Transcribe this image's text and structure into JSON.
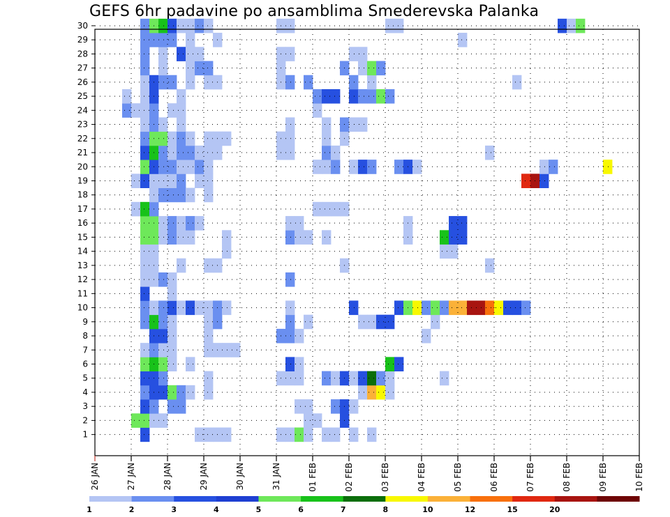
{
  "chart_data": {
    "type": "heatmap",
    "title": "GEFS 6hr padavine po ansamblima Smederevska Palanka",
    "x_tick_labels": [
      "26 JAN",
      "27 JAN",
      "28 JAN",
      "29 JAN",
      "30 JAN",
      "31 JAN",
      "01 FEB",
      "02 FEB",
      "03 FEB",
      "04 FEB",
      "05 FEB",
      "06 FEB",
      "07 FEB",
      "08 FEB",
      "09 FEB",
      "10 FEB"
    ],
    "y_tick_labels": [
      "1",
      "2",
      "3",
      "4",
      "5",
      "6",
      "7",
      "8",
      "9",
      "10",
      "11",
      "12",
      "13",
      "14",
      "15",
      "16",
      "17",
      "18",
      "19",
      "20",
      "21",
      "22",
      "23",
      "24",
      "25",
      "26",
      "27",
      "28",
      "29",
      "30"
    ],
    "y_range": [
      1,
      30
    ],
    "time_step_hours": 6,
    "grid": "dotted",
    "colorbar": {
      "labels": [
        "1",
        "2",
        "3",
        "4",
        "5",
        "6",
        "7",
        "8",
        "10",
        "12",
        "15",
        "20"
      ],
      "colors": [
        "#b4c5f4",
        "#6a8ff0",
        "#2650e0",
        "#1e3fd2",
        "#6ee85a",
        "#18c21a",
        "#0b6e0b",
        "#f8f800",
        "#fbb138",
        "#f8700c",
        "#e02810",
        "#a81410",
        "#6e0404"
      ]
    },
    "cells": [
      [
        1,
        5,
        3
      ],
      [
        1,
        11,
        1
      ],
      [
        1,
        12,
        1
      ],
      [
        1,
        13,
        1
      ],
      [
        1,
        14,
        1
      ],
      [
        1,
        20,
        1
      ],
      [
        1,
        21,
        1
      ],
      [
        1,
        22,
        5
      ],
      [
        1,
        23,
        1
      ],
      [
        1,
        25,
        1
      ],
      [
        1,
        26,
        1
      ],
      [
        1,
        28,
        1
      ],
      [
        1,
        30,
        1
      ],
      [
        2,
        4,
        5
      ],
      [
        2,
        5,
        5
      ],
      [
        2,
        6,
        1
      ],
      [
        2,
        7,
        1
      ],
      [
        2,
        23,
        1
      ],
      [
        2,
        24,
        1
      ],
      [
        2,
        27,
        3
      ],
      [
        3,
        5,
        3
      ],
      [
        3,
        6,
        2
      ],
      [
        3,
        8,
        2
      ],
      [
        3,
        9,
        2
      ],
      [
        3,
        22,
        1
      ],
      [
        3,
        23,
        1
      ],
      [
        3,
        26,
        2
      ],
      [
        3,
        27,
        3
      ],
      [
        3,
        28,
        1
      ],
      [
        4,
        5,
        2
      ],
      [
        4,
        6,
        3
      ],
      [
        4,
        7,
        3
      ],
      [
        4,
        8,
        5
      ],
      [
        4,
        9,
        2
      ],
      [
        4,
        10,
        1
      ],
      [
        4,
        12,
        1
      ],
      [
        4,
        29,
        1
      ],
      [
        4,
        30,
        9
      ],
      [
        4,
        31,
        8
      ],
      [
        4,
        32,
        1
      ],
      [
        5,
        5,
        3
      ],
      [
        5,
        6,
        3
      ],
      [
        5,
        7,
        2
      ],
      [
        5,
        12,
        1
      ],
      [
        5,
        20,
        1
      ],
      [
        5,
        21,
        1
      ],
      [
        5,
        22,
        1
      ],
      [
        5,
        25,
        2
      ],
      [
        5,
        26,
        1
      ],
      [
        5,
        27,
        3
      ],
      [
        5,
        28,
        1
      ],
      [
        5,
        29,
        3
      ],
      [
        5,
        30,
        7
      ],
      [
        5,
        31,
        2
      ],
      [
        5,
        32,
        1
      ],
      [
        5,
        38,
        1
      ],
      [
        6,
        5,
        5
      ],
      [
        6,
        6,
        6
      ],
      [
        6,
        7,
        5
      ],
      [
        6,
        8,
        1
      ],
      [
        6,
        10,
        1
      ],
      [
        6,
        21,
        3
      ],
      [
        6,
        22,
        1
      ],
      [
        6,
        32,
        6
      ],
      [
        6,
        33,
        3
      ],
      [
        7,
        5,
        1
      ],
      [
        7,
        6,
        2
      ],
      [
        7,
        7,
        1
      ],
      [
        7,
        8,
        1
      ],
      [
        7,
        12,
        1
      ],
      [
        7,
        13,
        1
      ],
      [
        7,
        14,
        1
      ],
      [
        7,
        15,
        1
      ],
      [
        8,
        6,
        3
      ],
      [
        8,
        7,
        3
      ],
      [
        8,
        8,
        1
      ],
      [
        8,
        12,
        1
      ],
      [
        8,
        20,
        2
      ],
      [
        8,
        21,
        2
      ],
      [
        8,
        22,
        1
      ],
      [
        8,
        36,
        1
      ],
      [
        9,
        5,
        2
      ],
      [
        9,
        6,
        6
      ],
      [
        9,
        7,
        2
      ],
      [
        9,
        8,
        1
      ],
      [
        9,
        12,
        1
      ],
      [
        9,
        13,
        2
      ],
      [
        9,
        21,
        2
      ],
      [
        9,
        23,
        1
      ],
      [
        9,
        29,
        1
      ],
      [
        9,
        30,
        1
      ],
      [
        9,
        31,
        3
      ],
      [
        9,
        32,
        3
      ],
      [
        9,
        37,
        1
      ],
      [
        10,
        5,
        2
      ],
      [
        10,
        6,
        1
      ],
      [
        10,
        7,
        2
      ],
      [
        10,
        8,
        3
      ],
      [
        10,
        9,
        1
      ],
      [
        10,
        10,
        3
      ],
      [
        10,
        11,
        1
      ],
      [
        10,
        12,
        1
      ],
      [
        10,
        13,
        2
      ],
      [
        10,
        14,
        1
      ],
      [
        10,
        21,
        1
      ],
      [
        10,
        28,
        3
      ],
      [
        10,
        33,
        3
      ],
      [
        10,
        34,
        5
      ],
      [
        10,
        35,
        8
      ],
      [
        10,
        36,
        2
      ],
      [
        10,
        37,
        5
      ],
      [
        10,
        38,
        2
      ],
      [
        10,
        39,
        9
      ],
      [
        10,
        40,
        9
      ],
      [
        10,
        41,
        12
      ],
      [
        10,
        42,
        12
      ],
      [
        10,
        43,
        10
      ],
      [
        10,
        44,
        8
      ],
      [
        10,
        45,
        3
      ],
      [
        10,
        46,
        3
      ],
      [
        10,
        47,
        2
      ],
      [
        11,
        5,
        3
      ],
      [
        11,
        8,
        1
      ],
      [
        12,
        5,
        1
      ],
      [
        12,
        6,
        1
      ],
      [
        12,
        7,
        2
      ],
      [
        12,
        8,
        1
      ],
      [
        12,
        21,
        2
      ],
      [
        13,
        5,
        1
      ],
      [
        13,
        6,
        1
      ],
      [
        13,
        9,
        1
      ],
      [
        13,
        12,
        1
      ],
      [
        13,
        13,
        1
      ],
      [
        13,
        27,
        1
      ],
      [
        13,
        43,
        1
      ],
      [
        14,
        5,
        1
      ],
      [
        14,
        6,
        1
      ],
      [
        14,
        14,
        1
      ],
      [
        14,
        38,
        1
      ],
      [
        14,
        39,
        1
      ],
      [
        15,
        5,
        5
      ],
      [
        15,
        6,
        5
      ],
      [
        15,
        7,
        1
      ],
      [
        15,
        8,
        2
      ],
      [
        15,
        9,
        1
      ],
      [
        15,
        10,
        1
      ],
      [
        15,
        14,
        1
      ],
      [
        15,
        21,
        2
      ],
      [
        15,
        22,
        1
      ],
      [
        15,
        23,
        1
      ],
      [
        15,
        25,
        1
      ],
      [
        15,
        34,
        1
      ],
      [
        15,
        38,
        6
      ],
      [
        15,
        39,
        3
      ],
      [
        15,
        40,
        3
      ],
      [
        16,
        5,
        5
      ],
      [
        16,
        6,
        5
      ],
      [
        16,
        7,
        1
      ],
      [
        16,
        8,
        2
      ],
      [
        16,
        9,
        1
      ],
      [
        16,
        10,
        2
      ],
      [
        16,
        11,
        1
      ],
      [
        16,
        21,
        1
      ],
      [
        16,
        22,
        1
      ],
      [
        16,
        34,
        1
      ],
      [
        16,
        39,
        3
      ],
      [
        16,
        40,
        3
      ],
      [
        17,
        4,
        1
      ],
      [
        17,
        5,
        6
      ],
      [
        17,
        6,
        2
      ],
      [
        17,
        24,
        1
      ],
      [
        17,
        25,
        1
      ],
      [
        17,
        26,
        1
      ],
      [
        17,
        27,
        1
      ],
      [
        18,
        6,
        1
      ],
      [
        18,
        7,
        2
      ],
      [
        18,
        8,
        2
      ],
      [
        18,
        9,
        2
      ],
      [
        18,
        10,
        1
      ],
      [
        18,
        12,
        1
      ],
      [
        19,
        4,
        1
      ],
      [
        19,
        5,
        3
      ],
      [
        19,
        6,
        1
      ],
      [
        19,
        7,
        1
      ],
      [
        19,
        8,
        1
      ],
      [
        19,
        9,
        2
      ],
      [
        19,
        11,
        1
      ],
      [
        19,
        12,
        1
      ],
      [
        19,
        47,
        11
      ],
      [
        19,
        48,
        12
      ],
      [
        19,
        49,
        3
      ],
      [
        20,
        5,
        5
      ],
      [
        20,
        6,
        3
      ],
      [
        20,
        7,
        2
      ],
      [
        20,
        8,
        2
      ],
      [
        20,
        9,
        1
      ],
      [
        20,
        10,
        1
      ],
      [
        20,
        11,
        2
      ],
      [
        20,
        12,
        1
      ],
      [
        20,
        24,
        1
      ],
      [
        20,
        25,
        1
      ],
      [
        20,
        26,
        2
      ],
      [
        20,
        28,
        1
      ],
      [
        20,
        29,
        3
      ],
      [
        20,
        30,
        2
      ],
      [
        20,
        33,
        2
      ],
      [
        20,
        34,
        3
      ],
      [
        20,
        35,
        1
      ],
      [
        20,
        49,
        1
      ],
      [
        20,
        50,
        2
      ],
      [
        20,
        56,
        8
      ],
      [
        21,
        5,
        3
      ],
      [
        21,
        6,
        6
      ],
      [
        21,
        7,
        2
      ],
      [
        21,
        8,
        1
      ],
      [
        21,
        9,
        2
      ],
      [
        21,
        10,
        2
      ],
      [
        21,
        11,
        1
      ],
      [
        21,
        12,
        1
      ],
      [
        21,
        13,
        1
      ],
      [
        21,
        20,
        1
      ],
      [
        21,
        21,
        1
      ],
      [
        21,
        25,
        2
      ],
      [
        21,
        26,
        1
      ],
      [
        21,
        43,
        1
      ],
      [
        22,
        5,
        2
      ],
      [
        22,
        6,
        5
      ],
      [
        22,
        7,
        5
      ],
      [
        22,
        8,
        1
      ],
      [
        22,
        9,
        2
      ],
      [
        22,
        10,
        1
      ],
      [
        22,
        12,
        1
      ],
      [
        22,
        13,
        1
      ],
      [
        22,
        14,
        1
      ],
      [
        22,
        20,
        1
      ],
      [
        22,
        21,
        1
      ],
      [
        22,
        25,
        1
      ],
      [
        22,
        27,
        1
      ],
      [
        23,
        5,
        1
      ],
      [
        23,
        6,
        2
      ],
      [
        23,
        7,
        1
      ],
      [
        23,
        9,
        1
      ],
      [
        23,
        21,
        1
      ],
      [
        23,
        25,
        1
      ],
      [
        23,
        27,
        2
      ],
      [
        23,
        28,
        1
      ],
      [
        23,
        29,
        1
      ],
      [
        24,
        3,
        2
      ],
      [
        24,
        4,
        1
      ],
      [
        24,
        5,
        1
      ],
      [
        24,
        6,
        2
      ],
      [
        24,
        8,
        1
      ],
      [
        24,
        9,
        1
      ],
      [
        24,
        24,
        1
      ],
      [
        25,
        3,
        1
      ],
      [
        25,
        5,
        1
      ],
      [
        25,
        6,
        3
      ],
      [
        25,
        9,
        1
      ],
      [
        25,
        24,
        2
      ],
      [
        25,
        25,
        3
      ],
      [
        25,
        26,
        3
      ],
      [
        25,
        28,
        3
      ],
      [
        25,
        29,
        2
      ],
      [
        25,
        30,
        2
      ],
      [
        25,
        31,
        5
      ],
      [
        25,
        32,
        2
      ],
      [
        26,
        5,
        1
      ],
      [
        26,
        6,
        3
      ],
      [
        26,
        7,
        2
      ],
      [
        26,
        8,
        2
      ],
      [
        26,
        10,
        1
      ],
      [
        26,
        12,
        1
      ],
      [
        26,
        13,
        1
      ],
      [
        26,
        20,
        1
      ],
      [
        26,
        21,
        2
      ],
      [
        26,
        23,
        2
      ],
      [
        26,
        28,
        2
      ],
      [
        26,
        30,
        1
      ],
      [
        26,
        46,
        1
      ],
      [
        27,
        5,
        2
      ],
      [
        27,
        7,
        1
      ],
      [
        27,
        10,
        1
      ],
      [
        27,
        11,
        2
      ],
      [
        27,
        12,
        2
      ],
      [
        27,
        20,
        1
      ],
      [
        27,
        27,
        2
      ],
      [
        27,
        29,
        1
      ],
      [
        27,
        30,
        5
      ],
      [
        27,
        31,
        2
      ],
      [
        28,
        5,
        2
      ],
      [
        28,
        7,
        1
      ],
      [
        28,
        9,
        3
      ],
      [
        28,
        10,
        1
      ],
      [
        28,
        11,
        1
      ],
      [
        28,
        20,
        1
      ],
      [
        28,
        21,
        1
      ],
      [
        28,
        28,
        1
      ],
      [
        28,
        29,
        1
      ],
      [
        29,
        5,
        2
      ],
      [
        29,
        6,
        2
      ],
      [
        29,
        7,
        2
      ],
      [
        29,
        8,
        2
      ],
      [
        29,
        10,
        1
      ],
      [
        29,
        13,
        1
      ],
      [
        29,
        40,
        1
      ],
      [
        30,
        5,
        2
      ],
      [
        30,
        6,
        5
      ],
      [
        30,
        7,
        6
      ],
      [
        30,
        8,
        3
      ],
      [
        30,
        9,
        1
      ],
      [
        30,
        10,
        1
      ],
      [
        30,
        11,
        2
      ],
      [
        30,
        12,
        1
      ],
      [
        30,
        20,
        1
      ],
      [
        30,
        21,
        1
      ],
      [
        30,
        32,
        1
      ],
      [
        30,
        33,
        1
      ],
      [
        30,
        51,
        3
      ],
      [
        30,
        52,
        1
      ],
      [
        30,
        53,
        5
      ]
    ]
  }
}
